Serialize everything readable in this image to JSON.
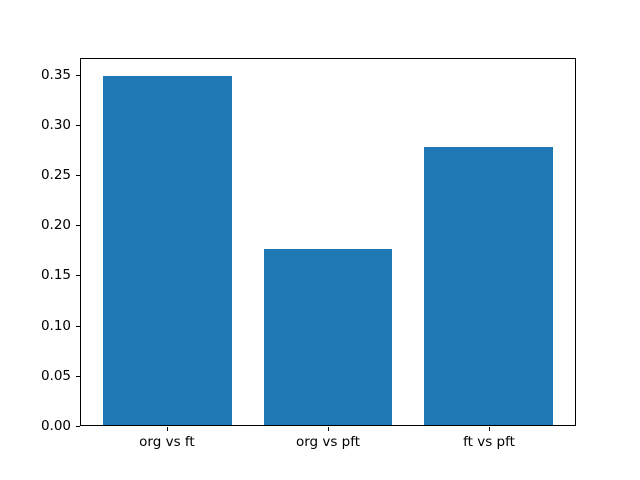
{
  "chart_data": {
    "type": "bar",
    "categories": [
      "org vs ft",
      "org vs pft",
      "ft vs pft"
    ],
    "values": [
      0.349,
      0.176,
      0.278
    ],
    "title": "",
    "xlabel": "",
    "ylabel": "",
    "ylim": [
      0,
      0.3665
    ],
    "xlim": [
      -0.54,
      2.54
    ],
    "yticks": [
      0.0,
      0.05,
      0.1,
      0.15,
      0.2,
      0.25,
      0.3,
      0.35
    ],
    "ytick_labels": [
      "0.00",
      "0.05",
      "0.10",
      "0.15",
      "0.20",
      "0.25",
      "0.30",
      "0.35"
    ],
    "bar_color": "#1f77b4",
    "bar_width_fraction": 0.8,
    "grid": false,
    "legend": null,
    "frame_color": "#000000",
    "background_color": "#ffffff"
  }
}
